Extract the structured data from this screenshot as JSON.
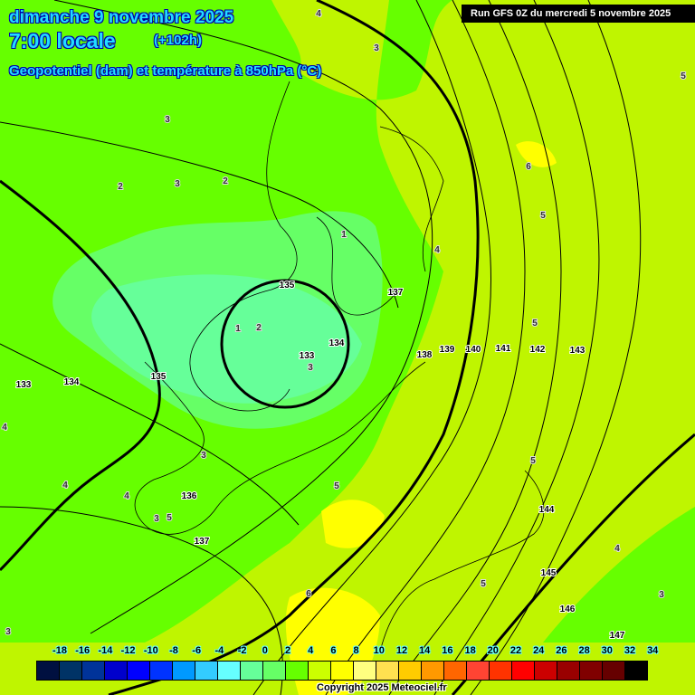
{
  "header": {
    "date": "dimanche 9 novembre 2025",
    "time": "7:00 locale",
    "lead": "(+102h)",
    "parameter": "Geopotentiel (dam) et température à 850hPa (°C)",
    "run": "Run GFS 0Z du mercredi 5 novembre 2025"
  },
  "legend": {
    "labels": [
      "-18",
      "-16",
      "-14",
      "-12",
      "-10",
      "-8",
      "-6",
      "-4",
      "-2",
      "0",
      "2",
      "4",
      "6",
      "8",
      "10",
      "12",
      "14",
      "16",
      "18",
      "20",
      "22",
      "24",
      "26",
      "28",
      "30",
      "32",
      "34"
    ],
    "colors": [
      "#001040",
      "#003366",
      "#003399",
      "#0000cc",
      "#0000ff",
      "#0033ff",
      "#0099ff",
      "#33ccff",
      "#66ffff",
      "#66ff99",
      "#66ff66",
      "#66ff00",
      "#ccff00",
      "#ffff00",
      "#ffff80",
      "#ffe050",
      "#ffcc00",
      "#ff9900",
      "#ff6600",
      "#ff4433",
      "#ff3300",
      "#ff0000",
      "#cc0000",
      "#990000",
      "#800000",
      "#660000",
      "#000000"
    ]
  },
  "geopotential_labels": [
    "135",
    "137",
    "138",
    "139",
    "140",
    "141",
    "142",
    "143",
    "133",
    "134",
    "133",
    "134",
    "135",
    "136",
    "137",
    "144",
    "145",
    "146",
    "147"
  ],
  "temperature_labels": [
    "4",
    "3",
    "5",
    "3",
    "2",
    "3",
    "2",
    "6",
    "5",
    "1",
    "4",
    "5",
    "1",
    "2",
    "3",
    "3",
    "5",
    "4",
    "4",
    "5",
    "5",
    "3",
    "4",
    "5",
    "6",
    "3",
    "3",
    "4"
  ],
  "copyright": "Copyright 2025 Meteociel.fr"
}
